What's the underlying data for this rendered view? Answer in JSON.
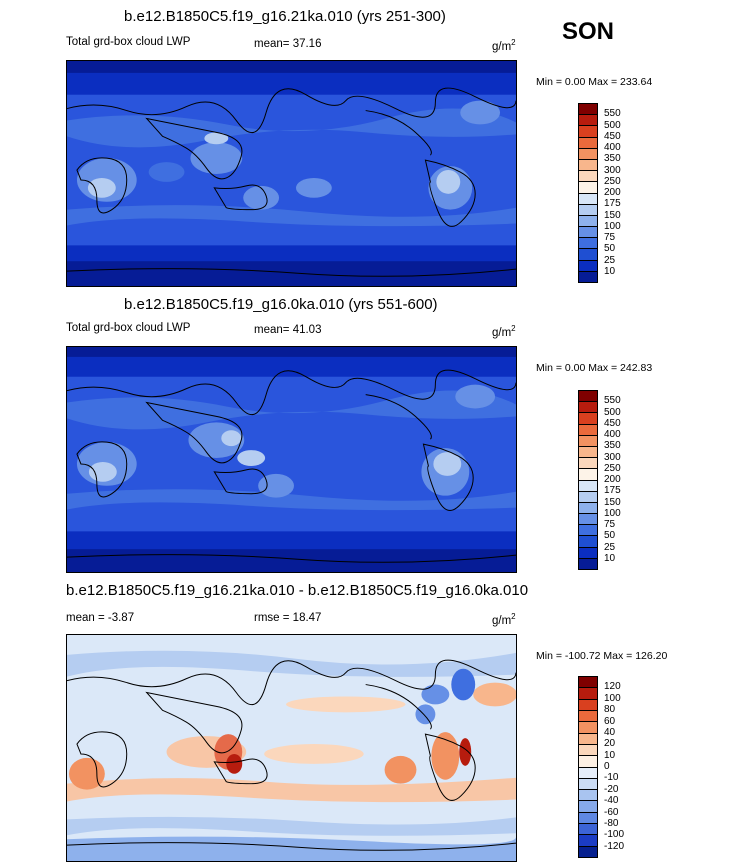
{
  "season": "SON",
  "panels": [
    {
      "title": "b.e12.B1850C5.f19_g16.21ka.010 (yrs 251-300)",
      "field": "Total grd-box cloud LWP",
      "stat_label": "mean=",
      "stat_value": "37.16",
      "units": "g/m",
      "units_exp": "2",
      "range_text": "Min =    0.00 Max = 233.64",
      "colorbar": {
        "labels": [
          "550",
          "500",
          "450",
          "400",
          "350",
          "300",
          "250",
          "200",
          "175",
          "150",
          "100",
          "75",
          "50",
          "25",
          "10"
        ],
        "colors": [
          "#7f0000",
          "#b71c0e",
          "#d9401f",
          "#ea6a3c",
          "#f29261",
          "#f8b68c",
          "#fbd7bc",
          "#fdf3e8",
          "#d8e6f7",
          "#b5cdf1",
          "#8eb1ec",
          "#6690e6",
          "#3f6fe0",
          "#1f4fd2",
          "#0b2ec0",
          "#061c96"
        ]
      },
      "basemap": "blue"
    },
    {
      "title": "b.e12.B1850C5.f19_g16.0ka.010 (yrs 551-600)",
      "field": "Total grd-box cloud LWP",
      "stat_label": "mean=",
      "stat_value": "41.03",
      "units": "g/m",
      "units_exp": "2",
      "range_text": "Min =    0.00 Max = 242.83",
      "colorbar": {
        "labels": [
          "550",
          "500",
          "450",
          "400",
          "350",
          "300",
          "250",
          "200",
          "175",
          "150",
          "100",
          "75",
          "50",
          "25",
          "10"
        ],
        "colors": [
          "#7f0000",
          "#b71c0e",
          "#d9401f",
          "#ea6a3c",
          "#f29261",
          "#f8b68c",
          "#fbd7bc",
          "#fdf3e8",
          "#d8e6f7",
          "#b5cdf1",
          "#8eb1ec",
          "#6690e6",
          "#3f6fe0",
          "#1f4fd2",
          "#0b2ec0",
          "#061c96"
        ]
      },
      "basemap": "blue"
    },
    {
      "title": "b.e12.B1850C5.f19_g16.21ka.010 - b.e12.B1850C5.f19_g16.0ka.010",
      "stat_label": "mean =",
      "stat_value": "-3.87",
      "stat2_label": "rmse =",
      "stat2_value": "18.47",
      "units": "g/m",
      "units_exp": "2",
      "range_text": "Min = -100.72 Max = 126.20",
      "colorbar": {
        "labels": [
          "120",
          "100",
          "80",
          "60",
          "40",
          "20",
          "10",
          "0",
          "-10",
          "-20",
          "-40",
          "-60",
          "-80",
          "-100",
          "-120"
        ],
        "colors": [
          "#7f0000",
          "#b71c0e",
          "#d9401f",
          "#ea6a3c",
          "#f29261",
          "#f8b68c",
          "#fbd7bc",
          "#fdf0e4",
          "#e6eefa",
          "#cbdcf5",
          "#a9c4f0",
          "#86a9ea",
          "#5f88e3",
          "#3c64d6",
          "#1b3cc4",
          "#06208f"
        ]
      },
      "basemap": "diff"
    }
  ]
}
